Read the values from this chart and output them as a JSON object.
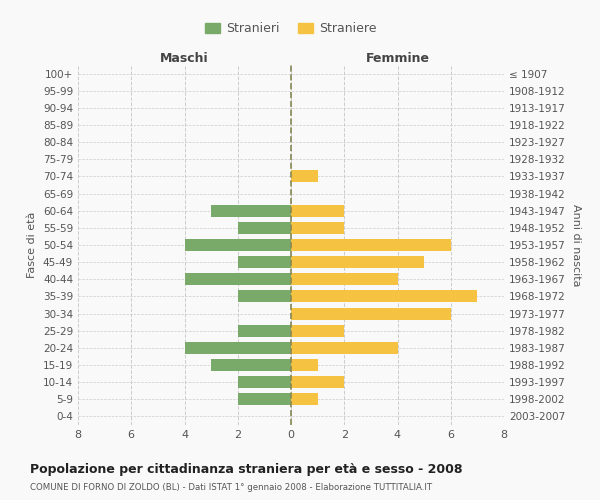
{
  "age_groups": [
    "0-4",
    "5-9",
    "10-14",
    "15-19",
    "20-24",
    "25-29",
    "30-34",
    "35-39",
    "40-44",
    "45-49",
    "50-54",
    "55-59",
    "60-64",
    "65-69",
    "70-74",
    "75-79",
    "80-84",
    "85-89",
    "90-94",
    "95-99",
    "100+"
  ],
  "birth_years": [
    "2003-2007",
    "1998-2002",
    "1993-1997",
    "1988-1992",
    "1983-1987",
    "1978-1982",
    "1973-1977",
    "1968-1972",
    "1963-1967",
    "1958-1962",
    "1953-1957",
    "1948-1952",
    "1943-1947",
    "1938-1942",
    "1933-1937",
    "1928-1932",
    "1923-1927",
    "1918-1922",
    "1913-1917",
    "1908-1912",
    "≤ 1907"
  ],
  "maschi": [
    0,
    2,
    2,
    3,
    4,
    2,
    0,
    2,
    4,
    2,
    4,
    2,
    3,
    0,
    0,
    0,
    0,
    0,
    0,
    0,
    0
  ],
  "femmine": [
    0,
    1,
    2,
    1,
    4,
    2,
    6,
    7,
    4,
    5,
    6,
    2,
    2,
    0,
    1,
    0,
    0,
    0,
    0,
    0,
    0
  ],
  "color_maschi": "#7aaa6a",
  "color_femmine": "#f5c242",
  "background_color": "#f9f9f9",
  "grid_color": "#cccccc",
  "title": "Popolazione per cittadinanza straniera per età e sesso - 2008",
  "subtitle": "COMUNE DI FORNO DI ZOLDO (BL) - Dati ISTAT 1° gennaio 2008 - Elaborazione TUTTITALIA.IT",
  "ylabel_left": "Fasce di età",
  "ylabel_right": "Anni di nascita",
  "header_maschi": "Maschi",
  "header_femmine": "Femmine",
  "legend_stranieri": "Stranieri",
  "legend_straniere": "Straniere",
  "xlim": 8,
  "bar_height": 0.7
}
